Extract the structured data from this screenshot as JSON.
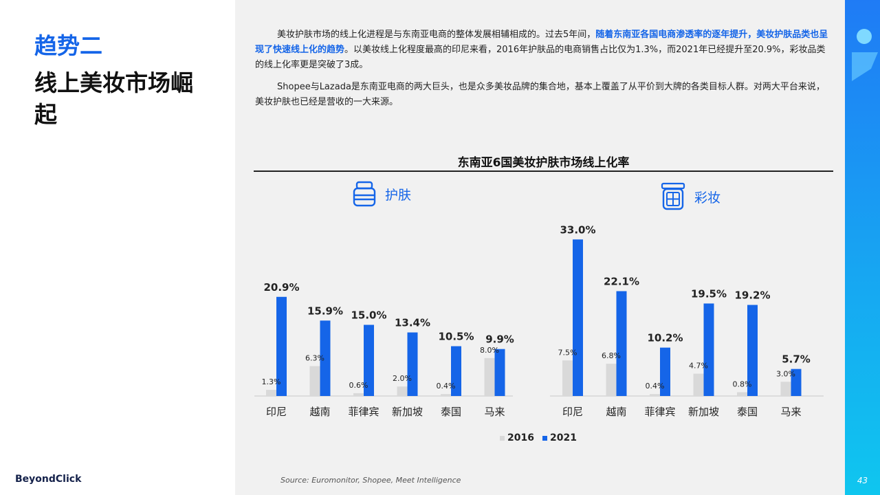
{
  "left": {
    "trend_label": "趋势二",
    "headline": "线上美妆市场崛起",
    "brand": "BeyondClick"
  },
  "intro": {
    "p1_pre": "美妆护肤市场的线上化进程是与东南亚电商的整体发展相辅相成的。过去5年间，",
    "p1_highlight": "随着东南亚各国电商渗透率的逐年提升，美妆护肤品类也呈现了快速线上化的趋势",
    "p1_post": "。以美妆线上化程度最高的印尼来看，2016年护肤品的电商销售占比仅为1.3%，而2021年已经提升至20.9%，彩妆品类的线上化率更是突破了3成。",
    "p2": "Shopee与Lazada是东南亚电商的两大巨头，也是众多美妆品牌的集合地，基本上覆盖了从平价到大牌的各类目标人群。对两大平台来说，美妆护肤也已经是营收的一大来源。"
  },
  "chart_data": {
    "type": "bar",
    "title": "东南亚6国美妆护肤市场线上化率",
    "legend_position": "bottom-center",
    "series_names": [
      "2016",
      "2021"
    ],
    "colors": {
      "2016": "#d9d9d9",
      "2021": "#1565e8"
    },
    "panels": [
      {
        "label": "护肤",
        "icon": "skincare-jar-icon",
        "categories": [
          "印尼",
          "越南",
          "菲律宾",
          "新加坡",
          "泰国",
          "马来"
        ],
        "series": [
          {
            "name": "2016",
            "values": [
              1.3,
              6.3,
              0.6,
              2.0,
              0.4,
              8.0
            ]
          },
          {
            "name": "2021",
            "values": [
              20.9,
              15.9,
              15.0,
              13.4,
              10.5,
              9.9
            ]
          }
        ]
      },
      {
        "label": "彩妆",
        "icon": "makeup-palette-icon",
        "categories": [
          "印尼",
          "越南",
          "菲律宾",
          "新加坡",
          "泰国",
          "马来"
        ],
        "series": [
          {
            "name": "2016",
            "values": [
              7.5,
              6.8,
              0.4,
              4.7,
              0.8,
              3.0
            ]
          },
          {
            "name": "2021",
            "values": [
              33.0,
              22.1,
              10.2,
              19.5,
              19.2,
              5.7
            ]
          }
        ]
      }
    ],
    "value_suffix": "%"
  },
  "source": "Source: Euromonitor, Shopee, Meet Intelligence",
  "page_number": "43"
}
